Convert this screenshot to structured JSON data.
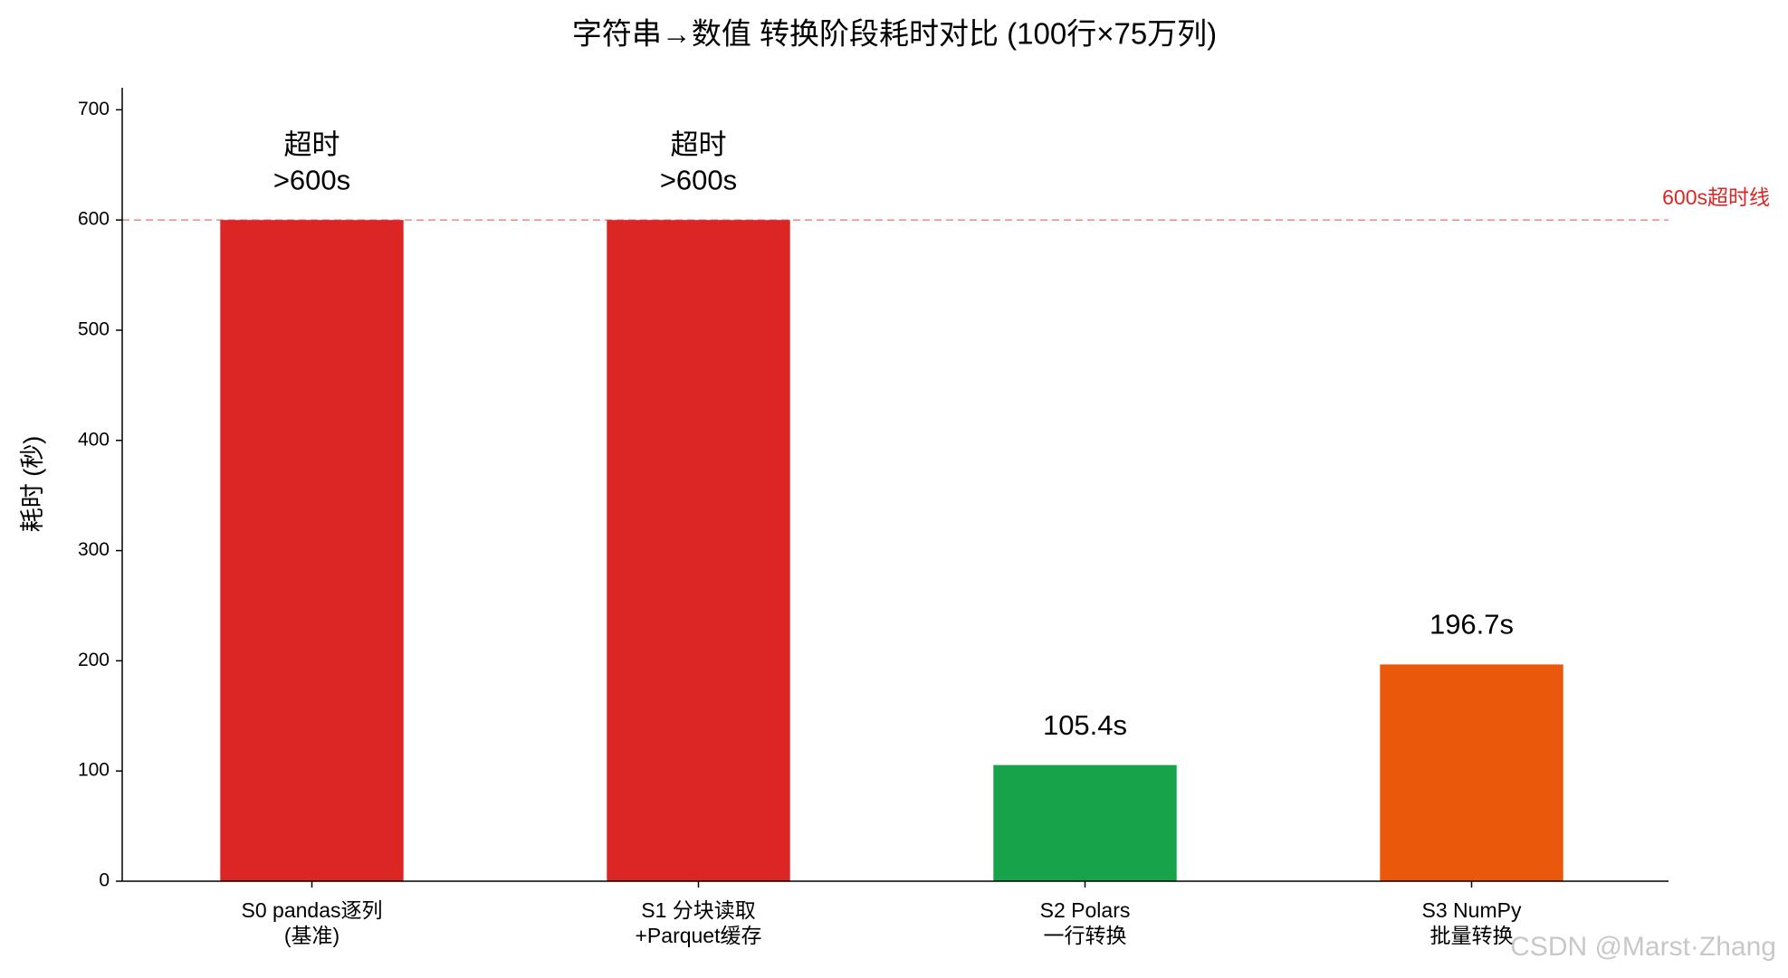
{
  "chart_data": {
    "type": "bar",
    "title": "字符串→数值 转换阶段耗时对比 (100行×75万列)",
    "y_label": "耗时 (秒)",
    "categories": [
      [
        "S0 pandas逐列",
        "(基准)"
      ],
      [
        "S1 分块读取",
        "+Parquet缓存"
      ],
      [
        "S2 Polars",
        "一行转换"
      ],
      [
        "S3 NumPy",
        "批量转换"
      ]
    ],
    "values": [
      600,
      600,
      105.4,
      196.7
    ],
    "value_labels": [
      [
        "超时",
        ">600s"
      ],
      [
        "超时",
        ">600s"
      ],
      [
        "105.4s"
      ],
      [
        "196.7s"
      ]
    ],
    "colors": [
      "#dc2626",
      "#dc2626",
      "#16a34a",
      "#ea580c"
    ],
    "ylim": [
      0,
      720
    ],
    "yticks": [
      0,
      100,
      200,
      300,
      400,
      500,
      600,
      700
    ],
    "reference_line": {
      "value": 600,
      "label": "600s超时线",
      "color": "#dc2626"
    },
    "watermark": "CSDN @Marst·Zhang"
  }
}
